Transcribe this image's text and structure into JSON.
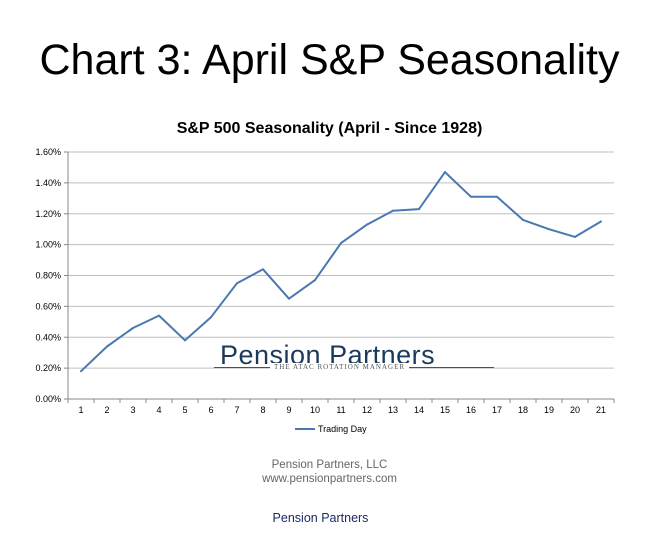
{
  "slide": {
    "title": "Chart 3: April S&P Seasonality"
  },
  "watermark": {
    "name": "Pension Partners",
    "tagline": "THE ATAC ROTATION MANAGER"
  },
  "footer": {
    "company": "Pension Partners, LLC",
    "website": "www.pensionpartners.com",
    "caption": "Pension Partners"
  },
  "colors": {
    "line": "#4a78b0",
    "grid": "#bfbfbf"
  },
  "chart_data": {
    "type": "line",
    "title": "S&P 500 Seasonality (April - Since 1928)",
    "xlabel": "",
    "ylabel": "",
    "ylim": [
      0,
      0.016
    ],
    "grid": true,
    "legend_position": "bottom",
    "y_ticks": [
      "0.00%",
      "0.20%",
      "0.40%",
      "0.60%",
      "0.80%",
      "1.00%",
      "1.20%",
      "1.40%",
      "1.60%"
    ],
    "categories": [
      "1",
      "2",
      "3",
      "4",
      "5",
      "6",
      "7",
      "8",
      "9",
      "10",
      "11",
      "12",
      "13",
      "14",
      "15",
      "16",
      "17",
      "18",
      "19",
      "20",
      "21"
    ],
    "series": [
      {
        "name": "Trading Day",
        "values": [
          0.0018,
          0.0034,
          0.0046,
          0.0054,
          0.0038,
          0.0053,
          0.0075,
          0.0084,
          0.0065,
          0.0077,
          0.0101,
          0.0113,
          0.0122,
          0.0123,
          0.0147,
          0.0131,
          0.0131,
          0.0116,
          0.011,
          0.0105,
          0.0115
        ]
      }
    ]
  }
}
